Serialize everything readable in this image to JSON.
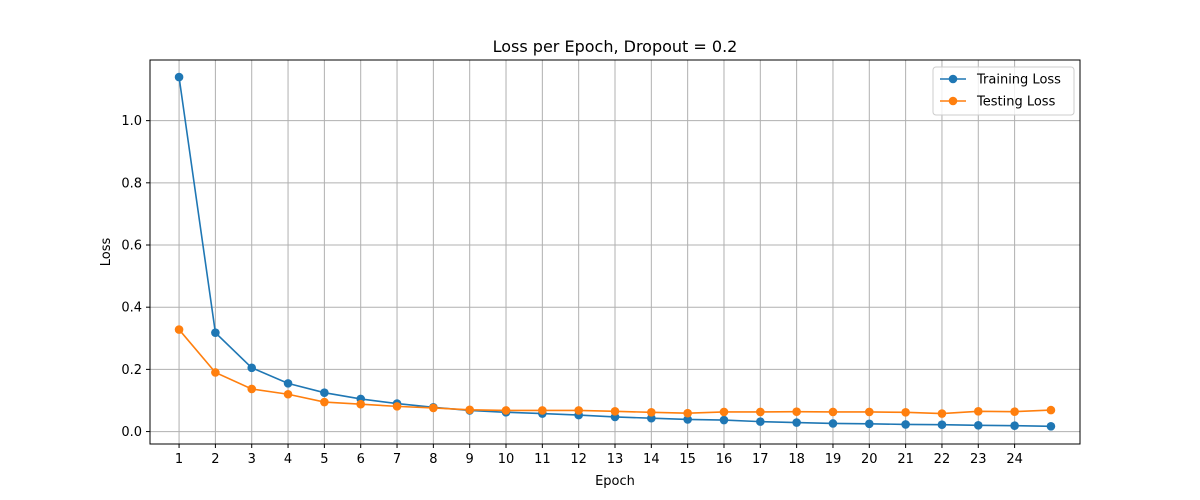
{
  "chart_data": {
    "type": "line",
    "title": "Loss per Epoch, Dropout = 0.2",
    "xlabel": "Epoch",
    "ylabel": "Loss",
    "x": [
      1,
      2,
      3,
      4,
      5,
      6,
      7,
      8,
      9,
      10,
      11,
      12,
      13,
      14,
      15,
      16,
      17,
      18,
      19,
      20,
      21,
      22,
      23,
      24,
      25
    ],
    "x_ticks": [
      1,
      2,
      3,
      4,
      5,
      6,
      7,
      8,
      9,
      10,
      11,
      12,
      13,
      14,
      15,
      16,
      17,
      18,
      19,
      20,
      21,
      22,
      23,
      24
    ],
    "y_ticks": [
      0.0,
      0.2,
      0.4,
      0.6,
      0.8,
      1.0
    ],
    "xlim": [
      0.2,
      25.8
    ],
    "ylim": [
      -0.04,
      1.195
    ],
    "grid": true,
    "legend_position": "top-right",
    "series": [
      {
        "name": "Training Loss",
        "color": "#1f77b4",
        "values": [
          1.14,
          0.318,
          0.205,
          0.155,
          0.125,
          0.105,
          0.09,
          0.078,
          0.068,
          0.062,
          0.058,
          0.053,
          0.047,
          0.043,
          0.039,
          0.037,
          0.032,
          0.029,
          0.026,
          0.025,
          0.023,
          0.022,
          0.02,
          0.019,
          0.017
        ]
      },
      {
        "name": "Testing Loss",
        "color": "#ff7f0e",
        "values": [
          0.328,
          0.19,
          0.137,
          0.12,
          0.095,
          0.088,
          0.081,
          0.076,
          0.07,
          0.068,
          0.068,
          0.068,
          0.065,
          0.062,
          0.059,
          0.063,
          0.063,
          0.064,
          0.063,
          0.063,
          0.062,
          0.058,
          0.065,
          0.064,
          0.069
        ]
      }
    ]
  }
}
